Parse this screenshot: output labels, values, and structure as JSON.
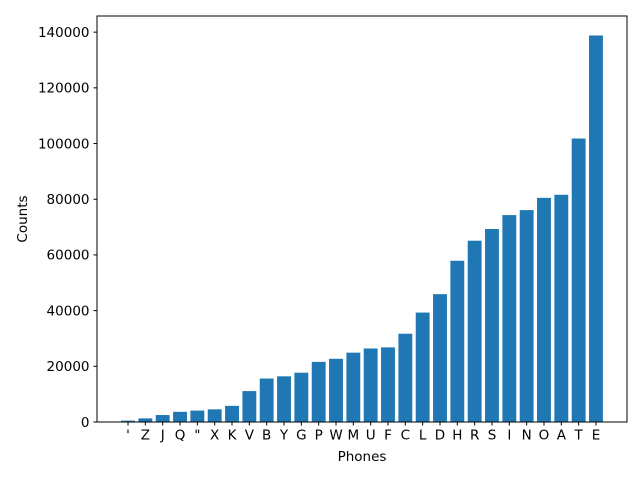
{
  "chart_data": {
    "type": "bar",
    "title": "",
    "xlabel": "Phones",
    "ylabel": "Counts",
    "categories": [
      "'",
      "Z",
      "J",
      "Q",
      "\"",
      "X",
      "K",
      "V",
      "B",
      "Y",
      "G",
      "P",
      "W",
      "M",
      "U",
      "F",
      "C",
      "L",
      "D",
      "H",
      "R",
      "S",
      "I",
      "N",
      "O",
      "A",
      "T",
      "E"
    ],
    "values": [
      500,
      1300,
      2500,
      3650,
      4100,
      4550,
      5800,
      11100,
      15600,
      16400,
      17700,
      21600,
      22700,
      24900,
      26400,
      26800,
      31700,
      39300,
      45900,
      57900,
      65100,
      69300,
      74300,
      76100,
      80500,
      81600,
      101800,
      138800
    ],
    "yticks": [
      0,
      20000,
      40000,
      60000,
      80000,
      100000,
      120000,
      140000
    ],
    "ylim": [
      0,
      145800
    ],
    "bar_color": "#1f77b4",
    "axis_color": "#000000",
    "grid": false,
    "legend": null
  }
}
